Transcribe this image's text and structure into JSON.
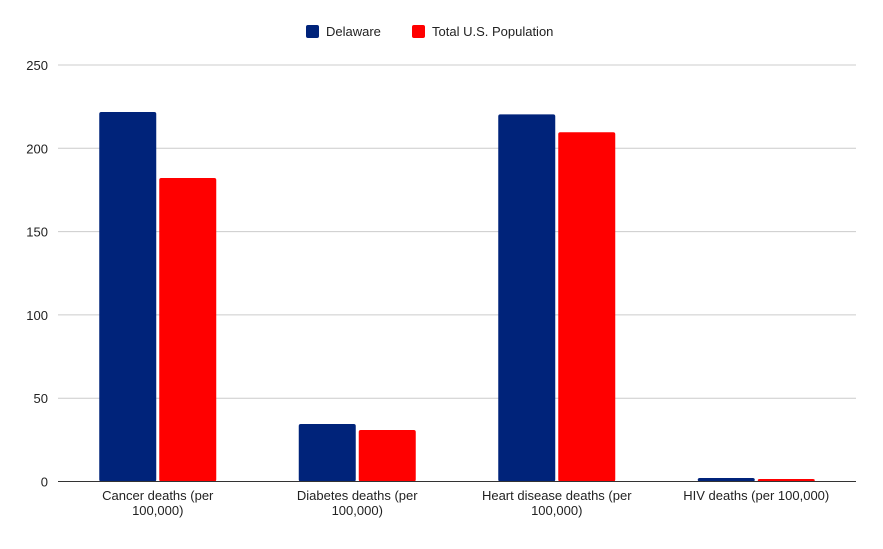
{
  "chart_data": {
    "type": "bar",
    "title": "",
    "xlabel": "",
    "ylabel": "",
    "ylim": [
      0,
      250
    ],
    "yticks": [
      0,
      50,
      100,
      150,
      200,
      250
    ],
    "grid": true,
    "legend_position": "top",
    "categories": [
      [
        "Cancer deaths (per",
        "100,000)"
      ],
      [
        "Diabetes deaths (per",
        "100,000)"
      ],
      [
        "Heart disease deaths (per",
        "100,000)"
      ],
      [
        "HIV deaths (per 100,000)"
      ]
    ],
    "series": [
      {
        "name": "Delaware",
        "color": "#00237a",
        "values": [
          221.8,
          34.5,
          220.4,
          2.1
        ]
      },
      {
        "name": "Total U.S. Population",
        "color": "#ff0000",
        "values": [
          182.2,
          30.9,
          209.6,
          1.5
        ]
      }
    ]
  }
}
